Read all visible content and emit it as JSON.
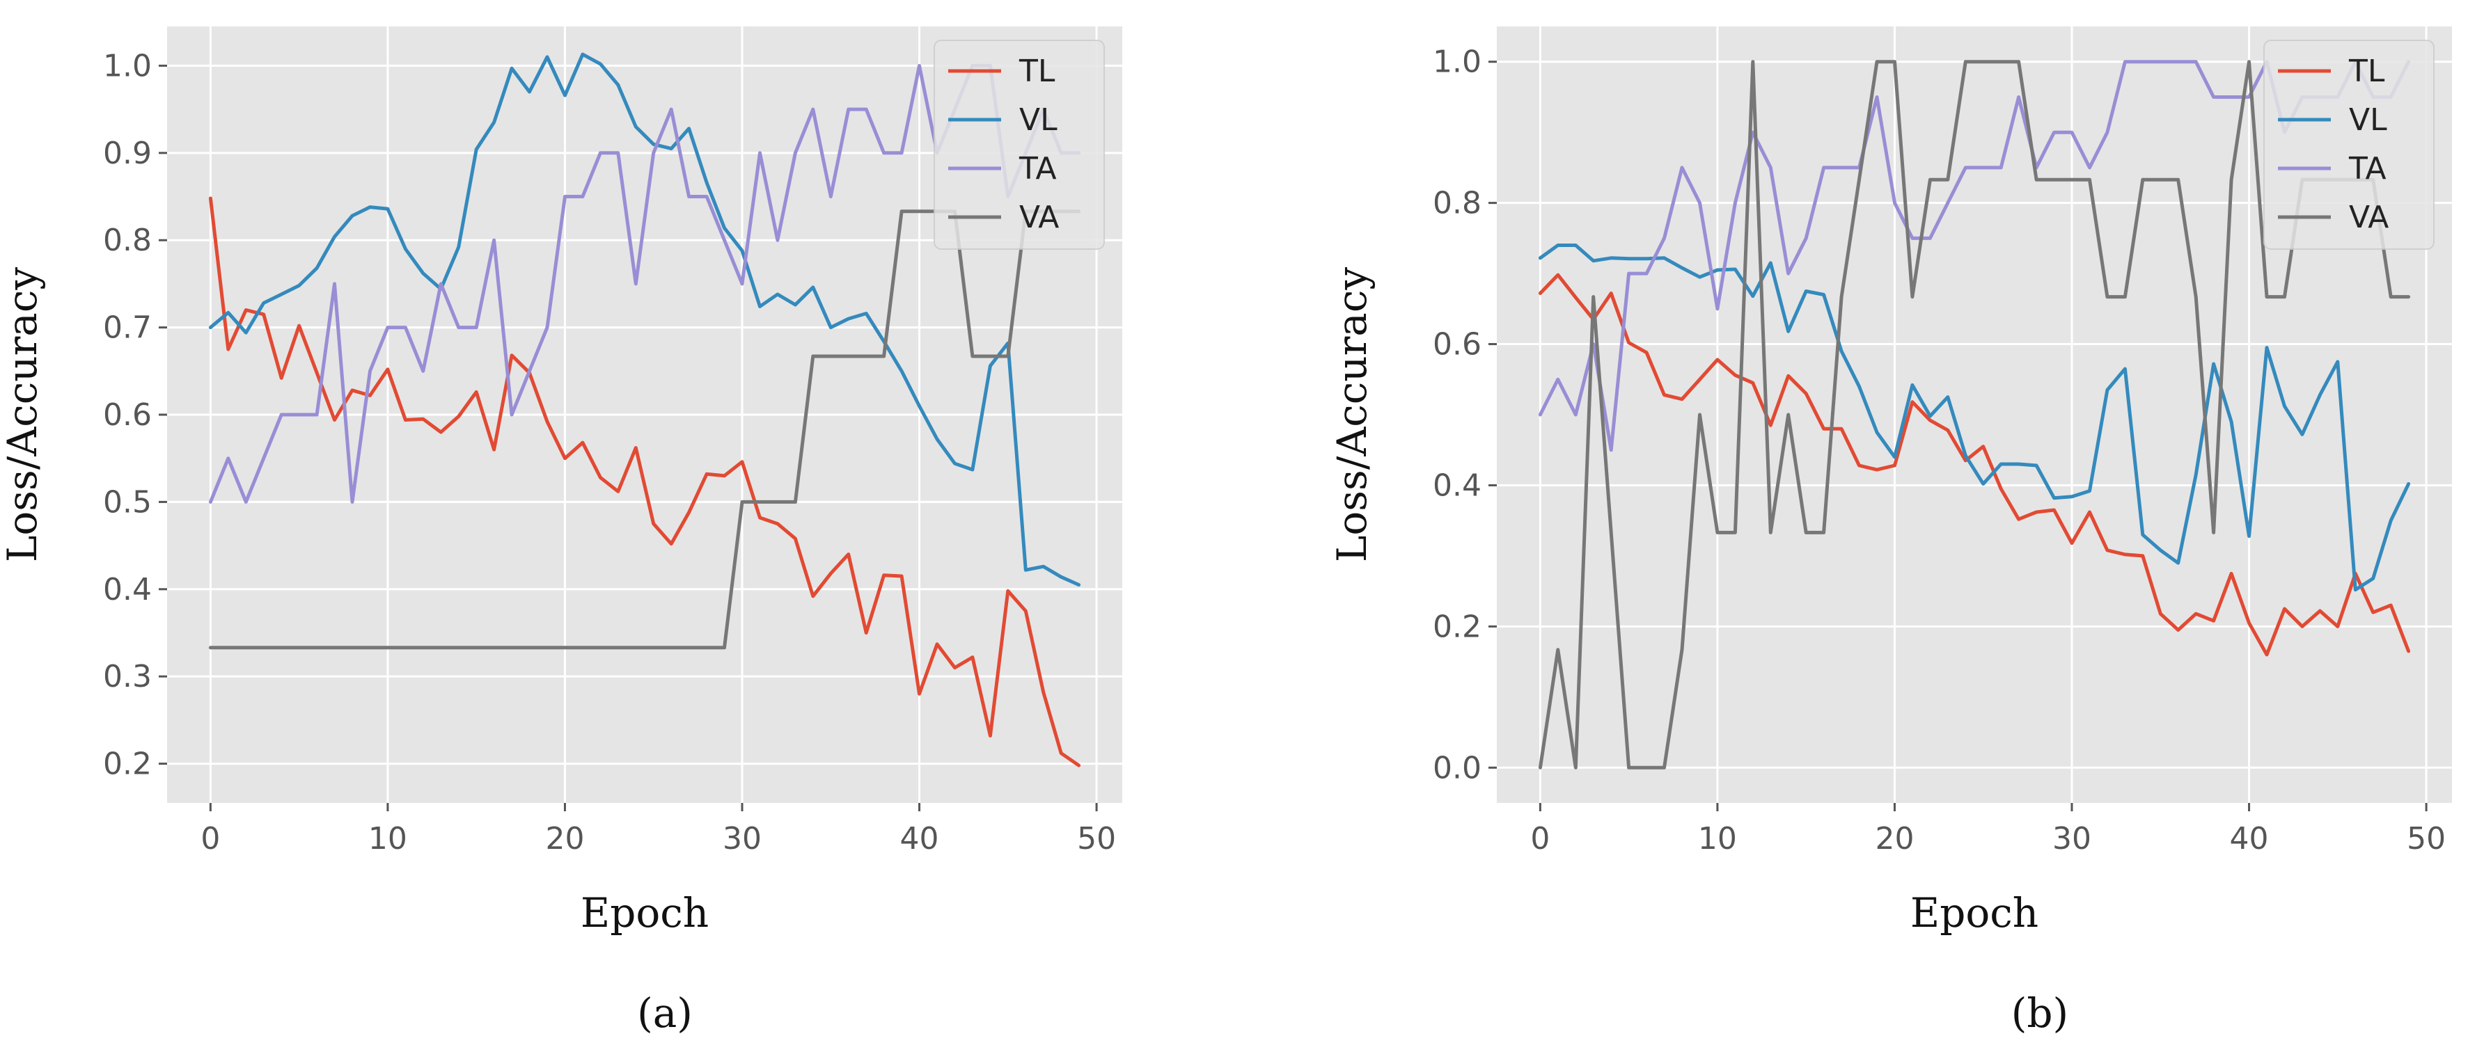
{
  "chart_data": [
    {
      "type": "line",
      "caption": "(a)",
      "xlabel": "Epoch",
      "ylabel": "Loss/Accuracy",
      "xlim": [
        -2.45,
        51.45
      ],
      "ylim": [
        0.155,
        1.045
      ],
      "xticks": [
        "0",
        "10",
        "20",
        "30",
        "40",
        "50"
      ],
      "yticks": [
        "0.2",
        "0.3",
        "0.4",
        "0.5",
        "0.6",
        "0.7",
        "0.8",
        "0.9",
        "1.0"
      ],
      "grid": true,
      "legend": "top-right",
      "series": [
        {
          "name": "TL",
          "color": "#E24A33",
          "values": [
            0.848,
            0.675,
            0.72,
            0.715,
            0.642,
            0.702,
            0.648,
            0.594,
            0.628,
            0.622,
            0.652,
            0.594,
            0.595,
            0.58,
            0.598,
            0.626,
            0.56,
            0.668,
            0.648,
            0.592,
            0.55,
            0.568,
            0.528,
            0.512,
            0.562,
            0.475,
            0.452,
            0.488,
            0.532,
            0.53,
            0.546,
            0.482,
            0.475,
            0.458,
            0.392,
            0.418,
            0.44,
            0.35,
            0.416,
            0.415,
            0.28,
            0.337,
            0.31,
            0.322,
            0.232,
            0.398,
            0.375,
            0.282,
            0.212,
            0.198
          ]
        },
        {
          "name": "VL",
          "color": "#348ABD",
          "values": [
            0.7,
            0.717,
            0.694,
            0.728,
            0.738,
            0.748,
            0.768,
            0.804,
            0.828,
            0.838,
            0.836,
            0.79,
            0.762,
            0.744,
            0.792,
            0.904,
            0.935,
            0.997,
            0.97,
            1.01,
            0.966,
            1.013,
            1.002,
            0.978,
            0.93,
            0.91,
            0.905,
            0.928,
            0.866,
            0.814,
            0.788,
            0.724,
            0.738,
            0.726,
            0.746,
            0.7,
            0.71,
            0.716,
            0.684,
            0.65,
            0.61,
            0.572,
            0.544,
            0.537,
            0.656,
            0.682,
            0.422,
            0.426,
            0.414,
            0.405
          ]
        },
        {
          "name": "TA",
          "color": "#988ED5",
          "values": [
            0.5,
            0.55,
            0.5,
            0.55,
            0.6,
            0.6,
            0.6,
            0.75,
            0.5,
            0.65,
            0.7,
            0.7,
            0.65,
            0.75,
            0.7,
            0.7,
            0.8,
            0.6,
            0.65,
            0.7,
            0.85,
            0.85,
            0.9,
            0.9,
            0.75,
            0.9,
            0.95,
            0.85,
            0.85,
            0.8,
            0.75,
            0.9,
            0.8,
            0.9,
            0.95,
            0.85,
            0.95,
            0.95,
            0.9,
            0.9,
            1.0,
            0.9,
            0.95,
            1.0,
            1.0,
            0.85,
            0.9,
            0.95,
            0.9,
            0.9
          ]
        },
        {
          "name": "VA",
          "color": "#777777",
          "values": [
            0.333,
            0.333,
            0.333,
            0.333,
            0.333,
            0.333,
            0.333,
            0.333,
            0.333,
            0.333,
            0.333,
            0.333,
            0.333,
            0.333,
            0.333,
            0.333,
            0.333,
            0.333,
            0.333,
            0.333,
            0.333,
            0.333,
            0.333,
            0.333,
            0.333,
            0.333,
            0.333,
            0.333,
            0.333,
            0.333,
            0.5,
            0.5,
            0.5,
            0.5,
            0.667,
            0.667,
            0.667,
            0.667,
            0.667,
            0.833,
            0.833,
            0.833,
            0.833,
            0.667,
            0.667,
            0.667,
            0.833,
            0.833,
            0.833,
            0.833
          ]
        }
      ]
    },
    {
      "type": "line",
      "caption": "(b)",
      "xlabel": "Epoch",
      "ylabel": "Loss/Accuracy",
      "xlim": [
        -2.45,
        51.45
      ],
      "ylim": [
        -0.05,
        1.05
      ],
      "xticks": [
        "0",
        "10",
        "20",
        "30",
        "40",
        "50"
      ],
      "yticks": [
        "0.0",
        "0.2",
        "0.4",
        "0.6",
        "0.8",
        "1.0"
      ],
      "grid": true,
      "legend": "top-right",
      "series": [
        {
          "name": "TL",
          "color": "#E24A33",
          "values": [
            0.672,
            0.698,
            0.666,
            0.635,
            0.672,
            0.602,
            0.588,
            0.528,
            0.522,
            0.55,
            0.578,
            0.556,
            0.545,
            0.485,
            0.555,
            0.53,
            0.48,
            0.48,
            0.428,
            0.422,
            0.428,
            0.518,
            0.492,
            0.478,
            0.435,
            0.455,
            0.395,
            0.352,
            0.362,
            0.365,
            0.318,
            0.362,
            0.308,
            0.302,
            0.3,
            0.218,
            0.195,
            0.218,
            0.208,
            0.275,
            0.205,
            0.16,
            0.225,
            0.2,
            0.222,
            0.2,
            0.275,
            0.22,
            0.23,
            0.165
          ]
        },
        {
          "name": "VL",
          "color": "#348ABD",
          "values": [
            0.722,
            0.74,
            0.74,
            0.718,
            0.722,
            0.721,
            0.721,
            0.722,
            0.708,
            0.695,
            0.705,
            0.706,
            0.668,
            0.715,
            0.618,
            0.675,
            0.67,
            0.59,
            0.54,
            0.475,
            0.44,
            0.542,
            0.498,
            0.525,
            0.442,
            0.402,
            0.43,
            0.43,
            0.428,
            0.382,
            0.384,
            0.392,
            0.535,
            0.565,
            0.33,
            0.308,
            0.29,
            0.415,
            0.572,
            0.49,
            0.328,
            0.595,
            0.512,
            0.472,
            0.528,
            0.575,
            0.252,
            0.268,
            0.35,
            0.402
          ]
        },
        {
          "name": "TA",
          "color": "#988ED5",
          "values": [
            0.5,
            0.55,
            0.5,
            0.6,
            0.45,
            0.7,
            0.7,
            0.75,
            0.85,
            0.8,
            0.65,
            0.8,
            0.9,
            0.85,
            0.7,
            0.75,
            0.85,
            0.85,
            0.85,
            0.95,
            0.8,
            0.75,
            0.75,
            0.8,
            0.85,
            0.85,
            0.85,
            0.95,
            0.85,
            0.9,
            0.9,
            0.85,
            0.9,
            1.0,
            1.0,
            1.0,
            1.0,
            1.0,
            0.95,
            0.95,
            0.95,
            1.0,
            0.9,
            0.95,
            0.95,
            0.95,
            1.0,
            0.95,
            0.95,
            1.0
          ]
        },
        {
          "name": "VA",
          "color": "#777777",
          "values": [
            0.0,
            0.167,
            0.0,
            0.667,
            0.333,
            0.0,
            0.0,
            0.0,
            0.167,
            0.5,
            0.333,
            0.333,
            1.0,
            0.333,
            0.5,
            0.333,
            0.333,
            0.667,
            0.833,
            1.0,
            1.0,
            0.667,
            0.833,
            0.833,
            1.0,
            1.0,
            1.0,
            1.0,
            0.833,
            0.833,
            0.833,
            0.833,
            0.667,
            0.667,
            0.833,
            0.833,
            0.833,
            0.667,
            0.333,
            0.833,
            1.0,
            0.667,
            0.667,
            0.833,
            0.833,
            0.833,
            0.833,
            0.833,
            0.667,
            0.667
          ]
        }
      ]
    }
  ]
}
